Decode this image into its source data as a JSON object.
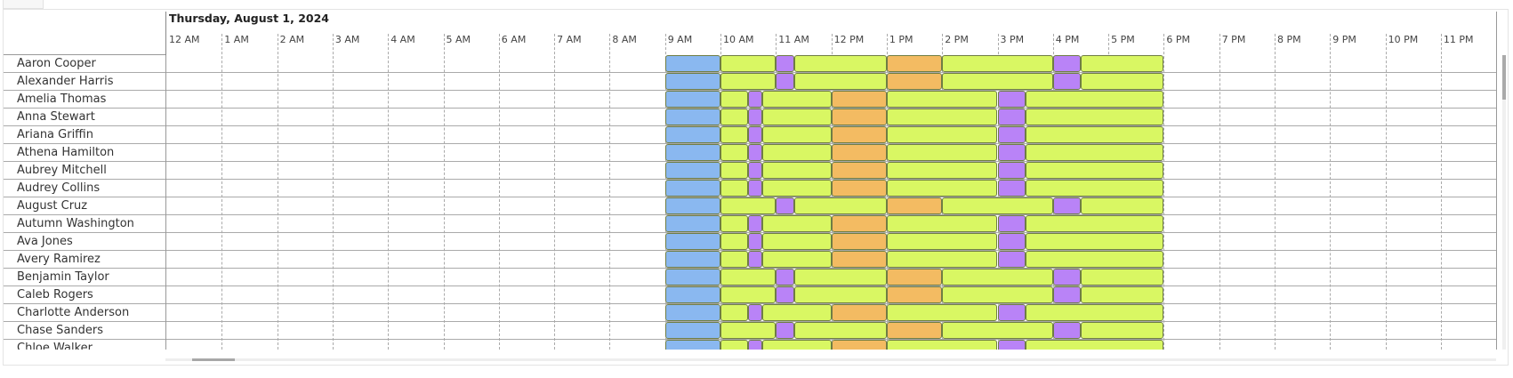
{
  "header": {
    "date": "Thursday, August 1, 2024"
  },
  "hours": [
    "12 AM",
    "1 AM",
    "2 AM",
    "3 AM",
    "4 AM",
    "5 AM",
    "6 AM",
    "7 AM",
    "8 AM",
    "9 AM",
    "10 AM",
    "11 AM",
    "12 PM",
    "1 PM",
    "2 PM",
    "3 PM",
    "4 PM",
    "5 PM",
    "6 PM",
    "7 PM",
    "8 PM",
    "9 PM",
    "10 PM",
    "11 PM"
  ],
  "colors": {
    "blue": "#8ab8f0",
    "green": "#d9f763",
    "purple": "#b983f7",
    "orange": "#f3bb62"
  },
  "patterns": {
    "A": [
      [
        9,
        10,
        "blue"
      ],
      [
        10,
        11,
        "green"
      ],
      [
        11,
        11.33,
        "purple"
      ],
      [
        11.33,
        13,
        "green"
      ],
      [
        13,
        14,
        "orange"
      ],
      [
        14,
        16,
        "green"
      ],
      [
        16,
        16.5,
        "purple"
      ],
      [
        16.5,
        18,
        "green"
      ]
    ],
    "B": [
      [
        9,
        10,
        "blue"
      ],
      [
        10,
        10.5,
        "green"
      ],
      [
        10.5,
        10.75,
        "purple"
      ],
      [
        10.75,
        12,
        "green"
      ],
      [
        12,
        13,
        "orange"
      ],
      [
        13,
        15,
        "green"
      ],
      [
        15,
        15.5,
        "purple"
      ],
      [
        15.5,
        18,
        "green"
      ]
    ]
  },
  "rows": [
    {
      "name": "Aaron Cooper",
      "pattern": "A"
    },
    {
      "name": "Alexander Harris",
      "pattern": "A"
    },
    {
      "name": "Amelia Thomas",
      "pattern": "B"
    },
    {
      "name": "Anna Stewart",
      "pattern": "B"
    },
    {
      "name": "Ariana Griffin",
      "pattern": "B"
    },
    {
      "name": "Athena Hamilton",
      "pattern": "B"
    },
    {
      "name": "Aubrey Mitchell",
      "pattern": "B"
    },
    {
      "name": "Audrey Collins",
      "pattern": "B"
    },
    {
      "name": "August Cruz",
      "pattern": "A"
    },
    {
      "name": "Autumn Washington",
      "pattern": "B"
    },
    {
      "name": "Ava Jones",
      "pattern": "B"
    },
    {
      "name": "Avery Ramirez",
      "pattern": "B"
    },
    {
      "name": "Benjamin Taylor",
      "pattern": "A"
    },
    {
      "name": "Caleb Rogers",
      "pattern": "A"
    },
    {
      "name": "Charlotte Anderson",
      "pattern": "B"
    },
    {
      "name": "Chase Sanders",
      "pattern": "A"
    },
    {
      "name": "Chloe Walker",
      "pattern": "B"
    }
  ]
}
